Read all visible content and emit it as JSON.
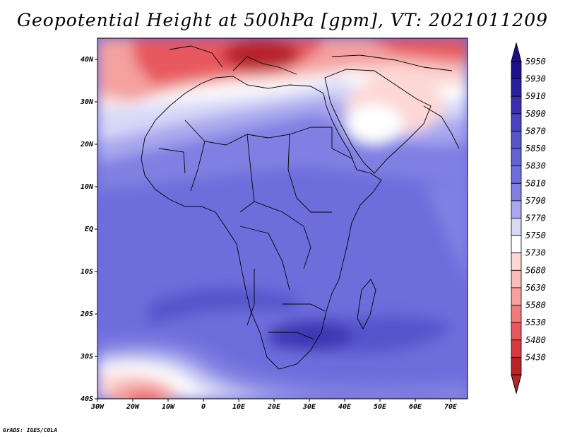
{
  "title": "Geopotential Height at 500hPa [gpm], VT: 2021011209",
  "credit": "GrADS: IGES/COLA",
  "colors": {
    "red_dark": "#b8242a",
    "red": "#e8585e",
    "red_light": "#f5a1a0",
    "pink": "#fcd7d6",
    "white": "#ffffff",
    "lavender": "#d7d9f7",
    "blue_light": "#a9a8ee",
    "blue_mid": "#8180e2",
    "blue": "#6f6ddc",
    "blue_deep": "#5754cb",
    "blue_darkest": "#3f36b3"
  },
  "map": {
    "lon_ticks": [
      "30W",
      "20W",
      "10W",
      "0",
      "10E",
      "20E",
      "30E",
      "40E",
      "50E",
      "60E",
      "70E"
    ],
    "lat_ticks": [
      "40N",
      "30N",
      "20N",
      "10N",
      "EQ",
      "10S",
      "20S",
      "30S",
      "40S"
    ]
  },
  "colorbar": {
    "labels": [
      "5950",
      "5930",
      "5910",
      "5890",
      "5870",
      "5850",
      "5830",
      "5810",
      "5790",
      "5770",
      "5750",
      "5730",
      "5680",
      "5630",
      "5580",
      "5530",
      "5480",
      "5430"
    ],
    "colors": [
      "#1d0f8a",
      "#2a1f9c",
      "#3a30ad",
      "#4a42bf",
      "#5754cb",
      "#6461d4",
      "#6f6ddc",
      "#8180e2",
      "#a9a8ee",
      "#d7d9f7",
      "#ffffff",
      "#fcd7d6",
      "#f8bcba",
      "#f5a1a0",
      "#ef7b7d",
      "#e8585e",
      "#d63a41",
      "#b8242a"
    ]
  }
}
